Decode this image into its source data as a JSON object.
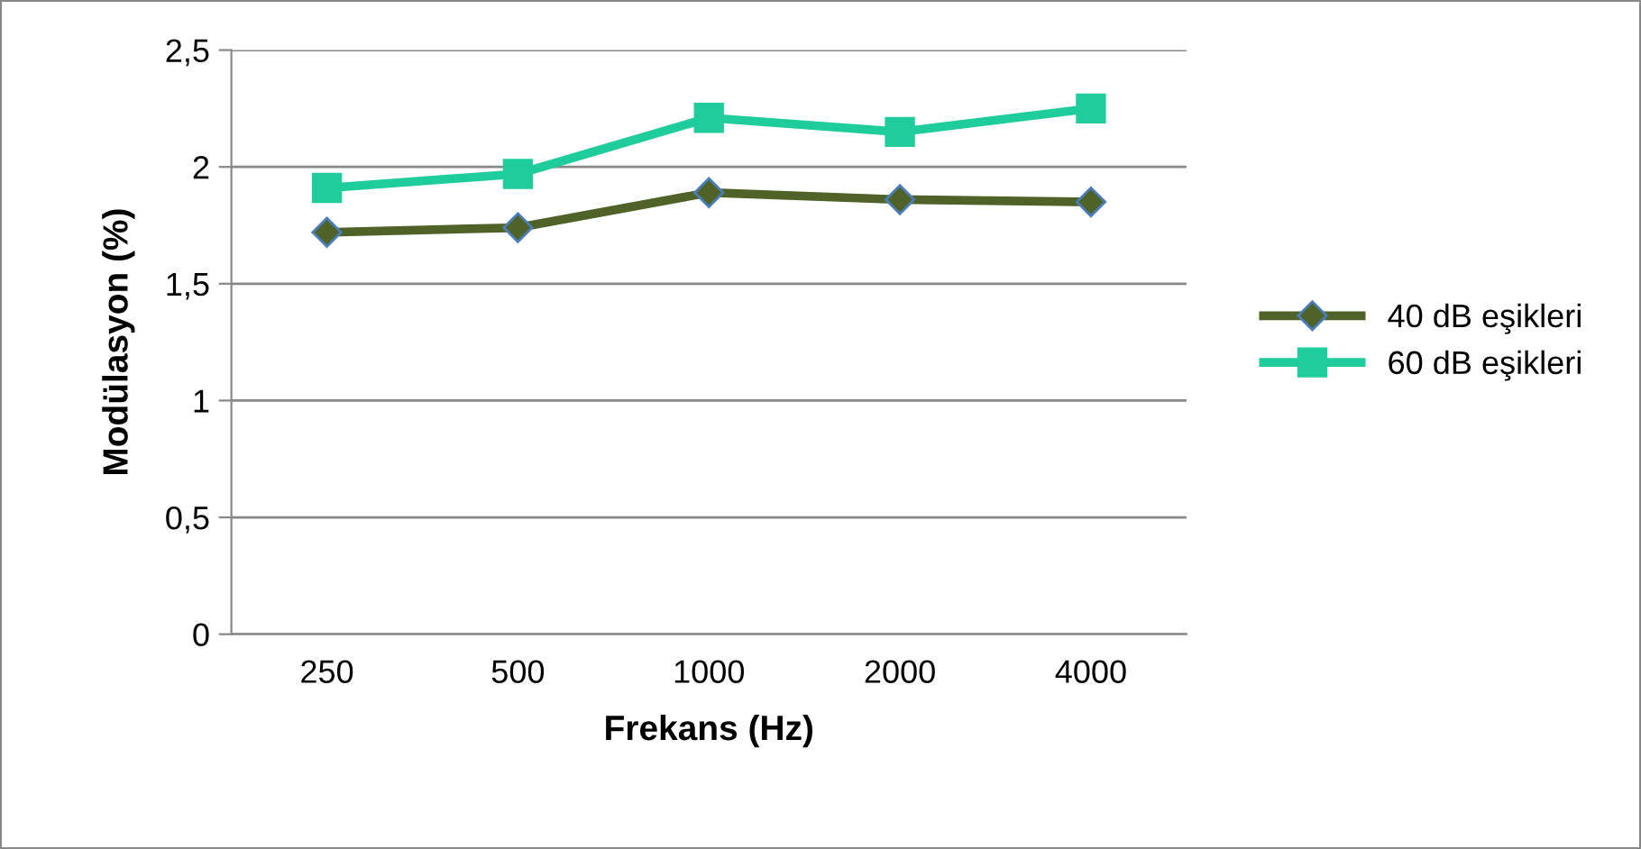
{
  "chart_data": {
    "type": "line",
    "xlabel": "Frekans (Hz)",
    "ylabel": "Modülasyon (%)",
    "categories": [
      "250",
      "500",
      "1000",
      "2000",
      "4000"
    ],
    "series": [
      {
        "name": "40 dB eşikleri",
        "color": "#4f6228",
        "marker": "diamond",
        "values": [
          1.72,
          1.74,
          1.89,
          1.86,
          1.85
        ]
      },
      {
        "name": "60 dB eşikleri",
        "color": "#1fcc9c",
        "marker": "square",
        "values": [
          1.91,
          1.97,
          2.21,
          2.15,
          2.25
        ]
      }
    ],
    "ylim": [
      0,
      2.5
    ],
    "yticks": [
      {
        "value": 0,
        "label": "0"
      },
      {
        "value": 0.5,
        "label": "0,5"
      },
      {
        "value": 1,
        "label": "1"
      },
      {
        "value": 1.5,
        "label": "1,5"
      },
      {
        "value": 2,
        "label": "2"
      },
      {
        "value": 2.5,
        "label": "2,5"
      }
    ],
    "grid": "y",
    "legend": "right",
    "line_style": "solid"
  }
}
